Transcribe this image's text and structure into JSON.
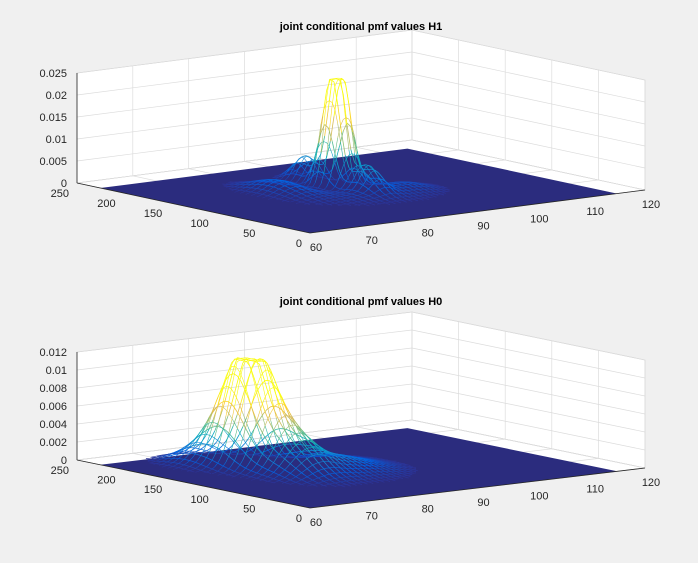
{
  "chart_data": [
    {
      "type": "surface-mesh",
      "title": "joint conditional pmf values H1",
      "xlabel": "",
      "ylabel": "",
      "zlabel": "",
      "x_ticks": [
        "60",
        "70",
        "80",
        "90",
        "100",
        "110",
        "120"
      ],
      "y_ticks": [
        "0",
        "50",
        "100",
        "150",
        "200",
        "250"
      ],
      "z_ticks": [
        "0",
        "0.005",
        "0.01",
        "0.015",
        "0.02",
        "0.025"
      ],
      "xlim": [
        60,
        120
      ],
      "ylim": [
        0,
        250
      ],
      "zlim": [
        0,
        0.025
      ],
      "data_xlim": [
        60,
        115
      ],
      "data_ylim": [
        0,
        225
      ],
      "colormap": "parula",
      "floor_color": "#2b2c7e",
      "grid": true,
      "peaks": [
        {
          "x": 85,
          "y": 127,
          "z": 0.0215,
          "sx": 1.1,
          "sy": 9
        },
        {
          "x": 87,
          "y": 127,
          "z": 0.021,
          "sx": 1.1,
          "sy": 9
        },
        {
          "x": 86,
          "y": 95,
          "z": 0.0055,
          "sx": 1.4,
          "sy": 12
        },
        {
          "x": 86,
          "y": 160,
          "z": 0.006,
          "sx": 1.4,
          "sy": 12
        },
        {
          "x": 77,
          "y": 135,
          "z": 0.003,
          "sx": 2.5,
          "sy": 25
        },
        {
          "x": 86,
          "y": 85,
          "z": 0.0015,
          "sx": 6,
          "sy": 20
        },
        {
          "x": 93,
          "y": 95,
          "z": 0.0012,
          "sx": 3,
          "sy": 15
        }
      ]
    },
    {
      "type": "surface-mesh",
      "title": "joint conditional pmf values H0",
      "xlabel": "",
      "ylabel": "",
      "zlabel": "",
      "x_ticks": [
        "60",
        "70",
        "80",
        "90",
        "100",
        "110",
        "120"
      ],
      "y_ticks": [
        "0",
        "50",
        "100",
        "150",
        "200",
        "250"
      ],
      "z_ticks": [
        "0",
        "0.002",
        "0.004",
        "0.006",
        "0.008",
        "0.01",
        "0.012"
      ],
      "xlim": [
        60,
        120
      ],
      "ylim": [
        0,
        250
      ],
      "zlim": [
        0,
        0.012
      ],
      "data_xlim": [
        60,
        115
      ],
      "data_ylim": [
        0,
        225
      ],
      "colormap": "parula",
      "floor_color": "#2b2c7e",
      "grid": true,
      "peaks": [
        {
          "x": 74,
          "y": 160,
          "z": 0.0085,
          "sx": 2.2,
          "sy": 18
        },
        {
          "x": 77,
          "y": 155,
          "z": 0.0072,
          "sx": 2.2,
          "sy": 18
        },
        {
          "x": 76,
          "y": 120,
          "z": 0.004,
          "sx": 3,
          "sy": 25
        },
        {
          "x": 72,
          "y": 185,
          "z": 0.002,
          "sx": 3,
          "sy": 20
        },
        {
          "x": 82,
          "y": 110,
          "z": 0.0015,
          "sx": 4,
          "sy": 25
        },
        {
          "x": 88,
          "y": 120,
          "z": 0.0006,
          "sx": 4,
          "sy": 30
        }
      ]
    }
  ]
}
